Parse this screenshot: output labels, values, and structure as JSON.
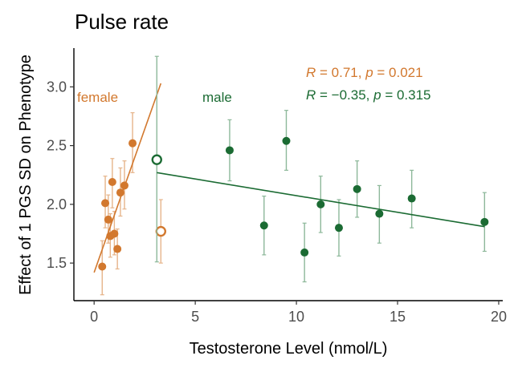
{
  "chart_data": {
    "type": "scatter",
    "title": "Pulse rate",
    "xlabel": "Testosterone Level (nmol/L)",
    "ylabel": "Effect of 1 PGS SD on Phenotype",
    "xlim": [
      -1,
      20.2
    ],
    "ylim": [
      1.18,
      3.33
    ],
    "xticks": [
      0,
      5,
      10,
      15,
      20
    ],
    "yticks": [
      1.5,
      2.0,
      2.5,
      3.0
    ],
    "xtick_labels": [
      "0",
      "5",
      "10",
      "15",
      "20"
    ],
    "ytick_labels": [
      "1.5",
      "2.0",
      "2.5",
      "3.0"
    ],
    "grid": false,
    "series": [
      {
        "name": "female",
        "color": "#d2782e",
        "errorbar_color": "#e6b48a",
        "points": [
          {
            "x": 0.4,
            "y": 1.47,
            "lo": 1.23,
            "hi": 1.69
          },
          {
            "x": 0.55,
            "y": 2.01,
            "lo": 1.8,
            "hi": 2.24
          },
          {
            "x": 0.7,
            "y": 1.87,
            "lo": 1.67,
            "hi": 2.08
          },
          {
            "x": 0.8,
            "y": 1.73,
            "lo": 1.55,
            "hi": 1.92
          },
          {
            "x": 0.9,
            "y": 2.19,
            "lo": 1.97,
            "hi": 2.39
          },
          {
            "x": 1.0,
            "y": 1.75,
            "lo": 1.57,
            "hi": 1.94
          },
          {
            "x": 1.15,
            "y": 1.62,
            "lo": 1.45,
            "hi": 1.79
          },
          {
            "x": 1.3,
            "y": 2.1,
            "lo": 1.9,
            "hi": 2.31
          },
          {
            "x": 1.5,
            "y": 2.16,
            "lo": 1.96,
            "hi": 2.37
          },
          {
            "x": 1.9,
            "y": 2.52,
            "lo": 2.27,
            "hi": 2.78
          },
          {
            "x": 3.3,
            "y": 1.77,
            "lo": 1.5,
            "hi": 2.04,
            "open": true
          }
        ],
        "trend": {
          "x1": 0.0,
          "y1": 1.42,
          "x2": 3.3,
          "y2": 3.03
        }
      },
      {
        "name": "male",
        "color": "#1b6b33",
        "errorbar_color": "#8db89a",
        "points": [
          {
            "x": 3.1,
            "y": 2.38,
            "lo": 1.51,
            "hi": 3.26,
            "open": true
          },
          {
            "x": 6.7,
            "y": 2.46,
            "lo": 2.2,
            "hi": 2.72
          },
          {
            "x": 8.4,
            "y": 1.82,
            "lo": 1.57,
            "hi": 2.07
          },
          {
            "x": 9.5,
            "y": 2.54,
            "lo": 2.29,
            "hi": 2.8
          },
          {
            "x": 10.4,
            "y": 1.59,
            "lo": 1.34,
            "hi": 1.84
          },
          {
            "x": 11.2,
            "y": 2.0,
            "lo": 1.76,
            "hi": 2.24
          },
          {
            "x": 12.1,
            "y": 1.8,
            "lo": 1.56,
            "hi": 2.04
          },
          {
            "x": 13.0,
            "y": 2.13,
            "lo": 1.89,
            "hi": 2.37
          },
          {
            "x": 14.1,
            "y": 1.92,
            "lo": 1.67,
            "hi": 2.16
          },
          {
            "x": 15.7,
            "y": 2.05,
            "lo": 1.8,
            "hi": 2.29
          },
          {
            "x": 19.3,
            "y": 1.85,
            "lo": 1.6,
            "hi": 2.1
          }
        ],
        "trend": {
          "x1": 3.1,
          "y1": 2.27,
          "x2": 19.3,
          "y2": 1.81
        }
      }
    ],
    "annotations": {
      "female_label": "female",
      "male_label": "male",
      "female_stat": "R = 0.71, p = 0.021",
      "male_stat": "R = −0.35, p = 0.315"
    }
  }
}
